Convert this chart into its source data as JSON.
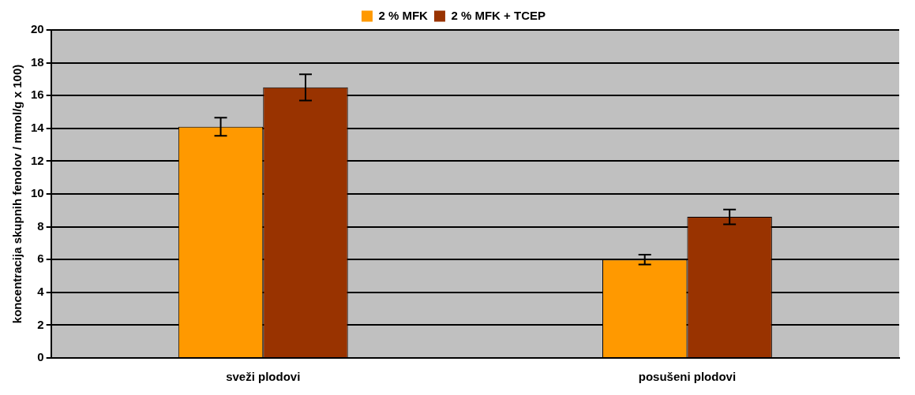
{
  "chart_data": {
    "type": "bar",
    "ylabel": "koncentracija skupnih fenolov / mmol/g x 100)",
    "categories": [
      "sveži plodovi",
      "posušeni plodovi"
    ],
    "series": [
      {
        "name": "2 % MFK",
        "color": "#ff9900",
        "values": [
          14.1,
          6.0
        ],
        "errors": [
          0.55,
          0.3
        ]
      },
      {
        "name": "2 % MFK + TCEP",
        "color": "#993300",
        "values": [
          16.5,
          8.6
        ],
        "errors": [
          0.8,
          0.45
        ]
      }
    ],
    "ylim": [
      0,
      20
    ],
    "yticks": [
      0,
      2,
      4,
      6,
      8,
      10,
      12,
      14,
      16,
      18,
      20
    ],
    "grid": "y",
    "legend": "top"
  }
}
